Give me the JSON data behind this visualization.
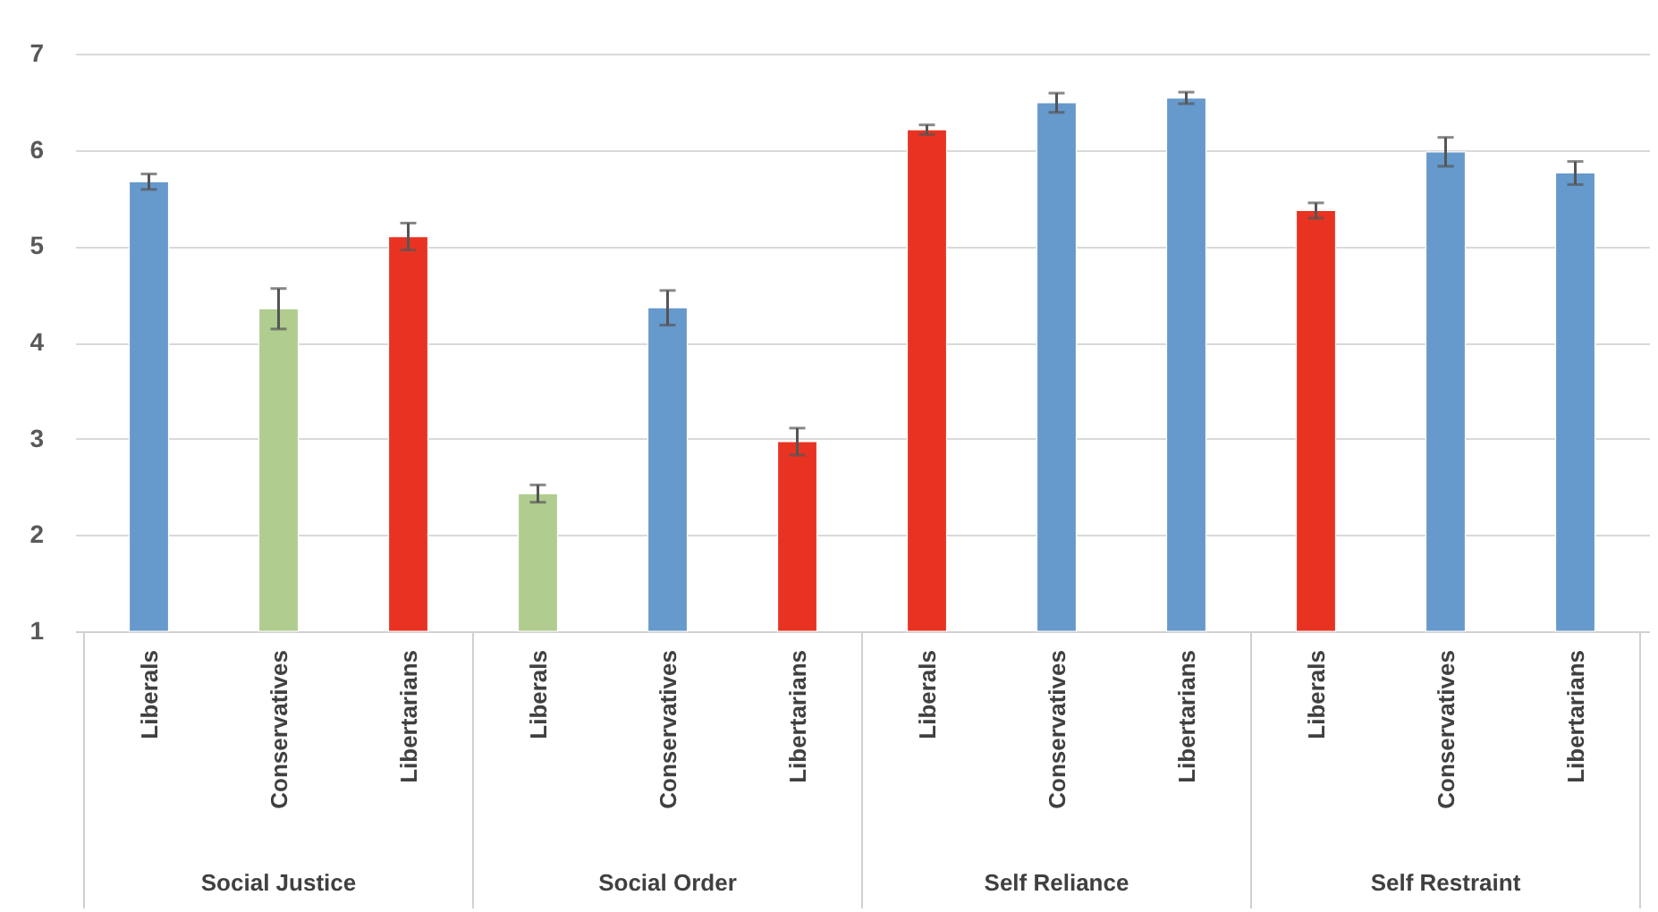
{
  "chart_data": {
    "type": "bar",
    "categories": [
      "Liberals",
      "Conservatives",
      "Libertarians",
      "Liberals",
      "Conservatives",
      "Libertarians",
      "Liberals",
      "Conservatives",
      "Libertarians",
      "Liberals",
      "Conservatives",
      "Libertarians"
    ],
    "values": [
      5.67,
      4.35,
      5.1,
      2.43,
      4.36,
      2.97,
      6.21,
      6.49,
      6.54,
      5.37,
      5.98,
      5.76
    ],
    "errors": [
      0.08,
      0.21,
      0.14,
      0.09,
      0.18,
      0.14,
      0.05,
      0.1,
      0.06,
      0.08,
      0.15,
      0.12
    ],
    "colors": [
      "#6699cc",
      "#b0cc8f",
      "#e83323",
      "#b0cc8f",
      "#6699cc",
      "#e83323",
      "#e83323",
      "#6699cc",
      "#6699cc",
      "#e83323",
      "#6699cc",
      "#6699cc"
    ],
    "annotations": [
      "Social Justice",
      "Social Order",
      "Self Reliance",
      "Self Restraint"
    ],
    "ylim": [
      1,
      7
    ],
    "yticks": [
      1,
      2,
      3,
      4,
      5,
      6,
      7
    ],
    "grid": "y"
  }
}
